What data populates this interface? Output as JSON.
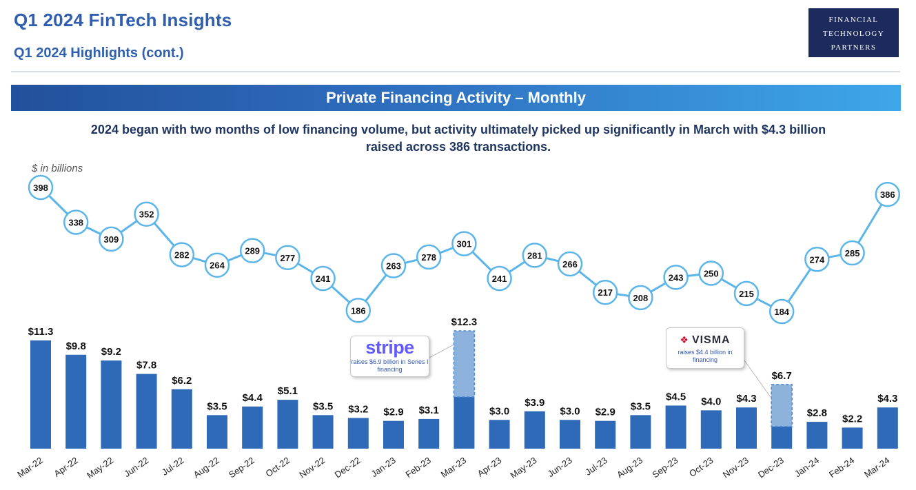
{
  "header": {
    "title": "Q1 2024 FinTech Insights",
    "subtitle": "Q1 2024 Highlights (cont.)",
    "logo_lines": [
      "FINANCIAL",
      "TECHNOLOGY",
      "PARTNERS"
    ]
  },
  "banner": "Private Financing Activity – Monthly",
  "headline": "2024 began with two months of low financing volume, but activity ultimately picked up significantly in March with $4.3 billion raised across 386 transactions.",
  "unit_label": "$ in billions",
  "colors": {
    "bar": "#2e6ab8",
    "highlight": "#8db3dd",
    "line": "#5bb5e8",
    "brand_blue": "#2f5fae"
  },
  "callouts": {
    "stripe": {
      "logo": "stripe",
      "text": "raises $6.9 billion in Series I financing"
    },
    "visma": {
      "logo": "VISMA",
      "text": "raises $4.4 billion in financing"
    }
  },
  "chart_data": {
    "type": "bar",
    "categories": [
      "Mar-22",
      "Apr-22",
      "May-22",
      "Jun-22",
      "Jul-22",
      "Aug-22",
      "Sep-22",
      "Oct-22",
      "Nov-22",
      "Dec-22",
      "Jan-23",
      "Feb-23",
      "Mar-23",
      "Apr-23",
      "May-23",
      "Jun-23",
      "Jul-23",
      "Aug-23",
      "Sep-23",
      "Oct-23",
      "Nov-23",
      "Dec-23",
      "Jan-24",
      "Feb-24",
      "Mar-24"
    ],
    "series": [
      {
        "values": [
          11.3,
          9.8,
          9.2,
          7.8,
          6.2,
          3.5,
          4.4,
          5.1,
          3.5,
          3.2,
          2.9,
          3.1,
          12.3,
          3.0,
          3.9,
          3.0,
          2.9,
          3.5,
          4.5,
          4.0,
          4.3,
          6.7,
          2.8,
          2.2,
          4.3
        ],
        "labels": [
          "$11.3",
          "$9.8",
          "$9.2",
          "$7.8",
          "$6.2",
          "$3.5",
          "$4.4",
          "$5.1",
          "$3.5",
          "$3.2",
          "$2.9",
          "$3.1",
          "$12.3",
          "$3.0",
          "$3.9",
          "$3.0",
          "$2.9",
          "$3.5",
          "$4.5",
          "$4.0",
          "$4.3",
          "$6.7",
          "$2.8",
          "$2.2",
          "$4.3"
        ]
      },
      {
        "type": "line",
        "values": [
          398,
          338,
          309,
          352,
          282,
          264,
          289,
          277,
          241,
          186,
          263,
          278,
          301,
          241,
          281,
          266,
          217,
          208,
          243,
          250,
          215,
          184,
          274,
          285,
          386
        ]
      }
    ],
    "highlights": [
      {
        "category": "Mar-23",
        "portion": 6.9,
        "callout": "stripe"
      },
      {
        "category": "Dec-23",
        "portion": 4.4,
        "callout": "visma"
      }
    ]
  }
}
